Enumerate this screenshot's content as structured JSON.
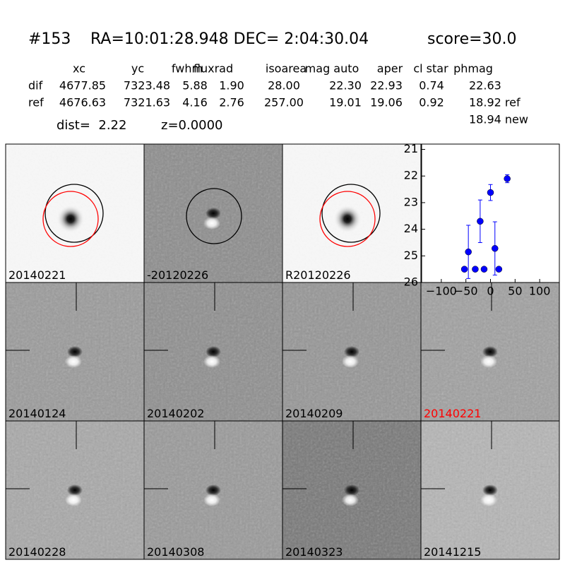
{
  "header": {
    "id": "#153",
    "coords": "RA=10:01:28.948 DEC= 2:04:30.04",
    "score": "score=30.0"
  },
  "table": {
    "columns": [
      "xc",
      "yc",
      "fwhm",
      "fluxrad",
      "isoarea",
      "mag auto",
      "aper",
      "cl star",
      "phmag"
    ],
    "rows": [
      [
        "dif",
        "4677.85",
        "7323.48",
        "5.88",
        "1.90",
        "28.00",
        "22.30",
        "22.93",
        "0.74",
        "22.63"
      ],
      [
        "ref",
        "4676.63",
        "7321.63",
        "4.16",
        "2.76",
        "257.00",
        "19.01",
        "19.06",
        "0.92",
        "18.92 ref"
      ]
    ],
    "extra": "18.94 new"
  },
  "dist": "dist=  2.22",
  "z": "z=0.0000",
  "panels": [
    "20140221",
    "-20120226",
    "R20120226",
    "20140124",
    "20140202",
    "20140209",
    "20140221",
    "20140228",
    "20140308",
    "20140323",
    "20141215"
  ],
  "chart_data": {
    "type": "scatter",
    "color": "#0000ff",
    "x": [
      -53,
      -45,
      -31,
      -21,
      -13,
      0,
      9,
      17,
      34
    ],
    "values": [
      25.5,
      24.85,
      25.5,
      23.7,
      25.5,
      22.62,
      24.72,
      25.5,
      22.1
    ],
    "errors": [
      null,
      1.0,
      null,
      0.8,
      null,
      0.3,
      1.0,
      null,
      0.15
    ],
    "xlim": [
      -140,
      140
    ],
    "ylim": [
      26,
      20.8
    ],
    "xticks": [
      {
        "value": -100,
        "label": "−100"
      },
      {
        "value": -50,
        "label": "−50"
      },
      0,
      50,
      100
    ],
    "yticks": [
      21,
      22,
      23,
      24,
      25,
      26
    ]
  }
}
